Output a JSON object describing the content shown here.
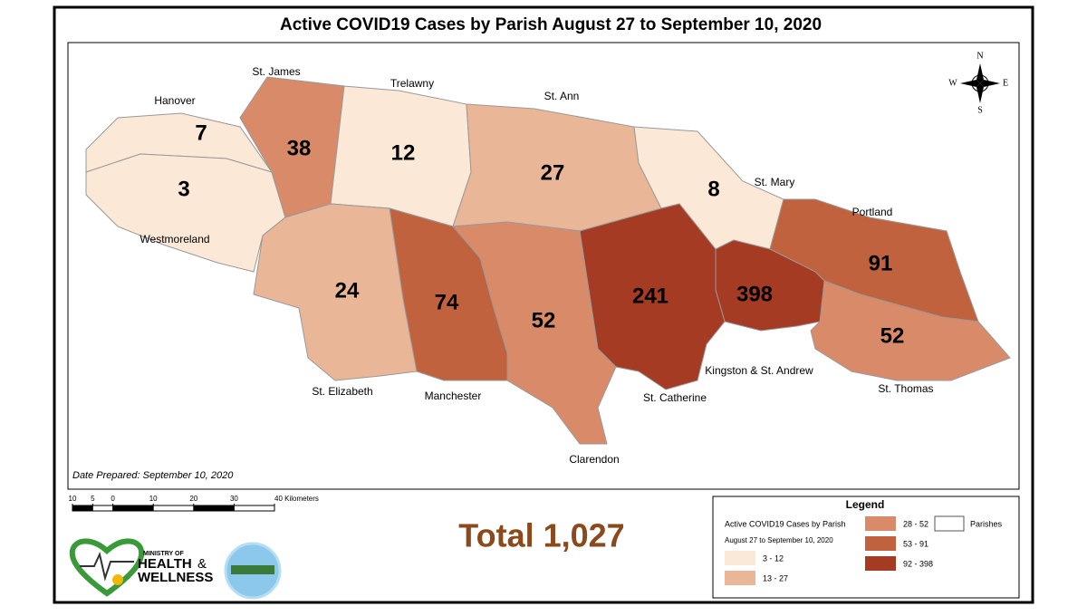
{
  "title": "Active COVID19 Cases by Parish August 27 to September 10, 2020",
  "compass": {
    "n": "N",
    "e": "E",
    "s": "S",
    "w": "W"
  },
  "parishes": [
    {
      "name": "Hanover",
      "value": 7,
      "color": "#fbe8d6"
    },
    {
      "name": "Westmoreland",
      "value": 3,
      "color": "#fbe8d6"
    },
    {
      "name": "St. James",
      "value": 38,
      "color": "#d98b69"
    },
    {
      "name": "Trelawny",
      "value": 12,
      "color": "#fbe8d6"
    },
    {
      "name": "St. Ann",
      "value": 27,
      "color": "#e9b797"
    },
    {
      "name": "St. Mary",
      "value": 8,
      "color": "#fbe8d6"
    },
    {
      "name": "Portland",
      "value": 91,
      "color": "#c1623f"
    },
    {
      "name": "St. Thomas",
      "value": 52,
      "color": "#d98b69"
    },
    {
      "name": "Kingston & St. Andrew",
      "value": 398,
      "color": "#a43b22"
    },
    {
      "name": "St. Catherine",
      "value": 241,
      "color": "#a43b22"
    },
    {
      "name": "Clarendon",
      "value": 52,
      "color": "#d98b69"
    },
    {
      "name": "Manchester",
      "value": 74,
      "color": "#c1623f"
    },
    {
      "name": "St. Elizabeth",
      "value": 24,
      "color": "#e9b797"
    }
  ],
  "date_prepared": "Date Prepared: September 10, 2020",
  "scale_bar": {
    "ticks": [
      {
        "value": -10,
        "label": "10"
      },
      {
        "value": -5,
        "label": "5"
      },
      0,
      10,
      20,
      30,
      {
        "value": 40,
        "label": "40 Kilometers"
      }
    ]
  },
  "total": "Total 1,027",
  "logo": {
    "line1": "MINISTRY OF",
    "line2": "HEALTH",
    "amp": "&",
    "line3": "WELLNESS"
  },
  "legend": {
    "title": "Legend",
    "subtitle": "Active COVID19 Cases by Parish",
    "subtitle2": "August 27 to September 10, 2020",
    "classes": [
      {
        "label": "3 - 12",
        "color": "#fbe8d6"
      },
      {
        "label": "13 - 27",
        "color": "#e9b797"
      },
      {
        "label": "28 - 52",
        "color": "#d98b69"
      },
      {
        "label": "53 - 91",
        "color": "#c1623f"
      },
      {
        "label": "92 - 398",
        "color": "#a43b22"
      }
    ],
    "parishes_label": "Parishes"
  }
}
